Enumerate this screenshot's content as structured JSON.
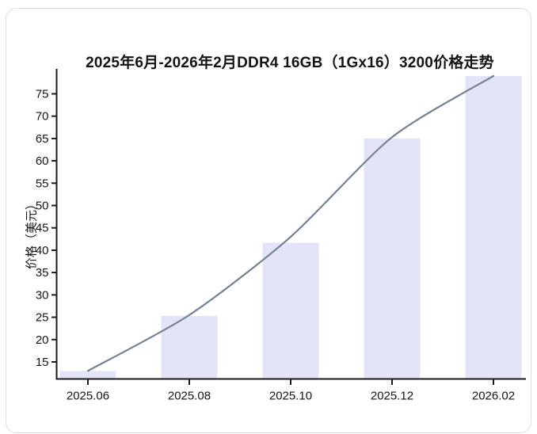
{
  "chart_data": {
    "type": "bar+line",
    "title": "2025年6月-2026年2月DDR4 16GB（1Gx16）3200价格走势",
    "categories": [
      "2025.06",
      "2025.08",
      "2025.10",
      "2025.12",
      "2026.02"
    ],
    "series": [
      {
        "type": "bar",
        "values": [
          13,
          25.3,
          41.7,
          65,
          79
        ]
      },
      {
        "type": "line",
        "values": [
          13,
          25.5,
          43,
          65.3,
          79
        ]
      }
    ],
    "xlabel": "",
    "ylabel": "价格（美元）",
    "ylim": [
      11.1,
      80.4
    ],
    "yticks": [
      15,
      20,
      25,
      30,
      35,
      40,
      45,
      50,
      55,
      60,
      65,
      70,
      75
    ],
    "grid": false,
    "legend": false,
    "colors": {
      "bar_fill": "#E4E4F8",
      "line_stroke": "#76818F",
      "axis": "#1A1A1A",
      "text": "#141414",
      "card_border": "#DEDEDE",
      "background": "#FFFFFF"
    }
  }
}
